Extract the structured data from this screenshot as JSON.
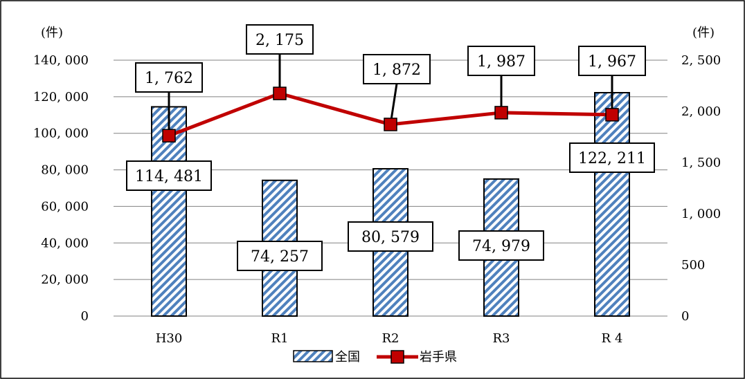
{
  "chart_data": {
    "type": "bar+line",
    "categories": [
      "H30",
      "R1",
      "R2",
      "R3",
      "R 4"
    ],
    "left_unit": "(件)",
    "right_unit": "(件)",
    "left_ylim": [
      0,
      140000
    ],
    "right_ylim": [
      0,
      2500
    ],
    "left_ticks": [
      "0",
      "20, 000",
      "40, 000",
      "60, 000",
      "80, 000",
      "100, 000",
      "120, 000",
      "140, 000"
    ],
    "right_ticks": [
      "0",
      "500",
      "1, 000",
      "1, 500",
      "2, 000",
      "2, 500"
    ],
    "grid": true,
    "legend_position": "bottom",
    "series": [
      {
        "name": "全国",
        "kind": "bar",
        "axis": "left",
        "values": [
          114481,
          74257,
          80579,
          74979,
          122211
        ],
        "labels": [
          "114, 481",
          "74, 257",
          "80, 579",
          "74, 979",
          "122, 211"
        ],
        "color": "#4f81bd"
      },
      {
        "name": "岩手県",
        "kind": "line",
        "axis": "right",
        "values": [
          1762,
          2175,
          1872,
          1987,
          1967
        ],
        "labels": [
          "1, 762",
          "2, 175",
          "1, 872",
          "1, 987",
          "1, 967"
        ],
        "color": "#c00000"
      }
    ]
  }
}
